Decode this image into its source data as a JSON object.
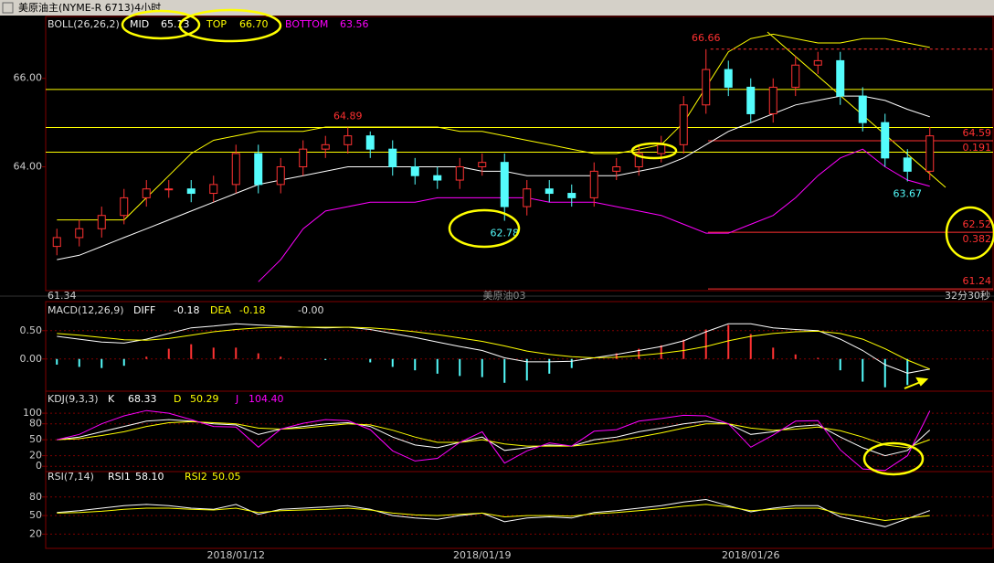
{
  "title": "美原油主(NYME-R 6713)4小时",
  "footer": {
    "left": "61.34",
    "center": "美原油03",
    "right": "32分30秒"
  },
  "chart_data": [
    {
      "type": "candlestick",
      "header": "BOLL(26,26,2)",
      "open": [
        62.2,
        62.4,
        62.6,
        62.9,
        63.3,
        63.5,
        63.5,
        63.4,
        63.6,
        64.3,
        63.6,
        64.0,
        64.4,
        64.5,
        64.7,
        64.4,
        64.0,
        63.8,
        63.7,
        64.0,
        64.1,
        63.1,
        63.5,
        63.4,
        63.3,
        63.9,
        64.0,
        64.3,
        64.5,
        65.4,
        66.2,
        65.8,
        65.2,
        65.8,
        66.3,
        66.4,
        65.6,
        65.0,
        64.2,
        63.9
      ],
      "high": [
        62.6,
        62.8,
        63.1,
        63.5,
        63.7,
        63.7,
        63.7,
        63.8,
        64.5,
        64.5,
        64.2,
        64.6,
        64.7,
        64.89,
        64.8,
        64.6,
        64.2,
        64.0,
        64.2,
        64.3,
        64.3,
        63.7,
        63.7,
        63.6,
        64.1,
        64.2,
        64.5,
        64.7,
        65.6,
        66.66,
        66.4,
        66.0,
        66.0,
        66.5,
        66.6,
        66.6,
        65.8,
        65.2,
        64.4,
        64.9
      ],
      "low": [
        62.0,
        62.2,
        62.4,
        62.7,
        63.1,
        63.3,
        63.2,
        63.2,
        63.4,
        63.4,
        63.4,
        63.8,
        64.2,
        64.3,
        64.2,
        63.8,
        63.6,
        63.5,
        63.5,
        63.8,
        62.78,
        62.9,
        63.2,
        63.1,
        63.1,
        63.7,
        63.8,
        64.1,
        64.3,
        65.2,
        65.6,
        65.0,
        65.0,
        65.6,
        66.1,
        65.4,
        64.8,
        64.0,
        63.67,
        63.7
      ],
      "close": [
        62.4,
        62.6,
        62.9,
        63.3,
        63.5,
        63.5,
        63.4,
        63.6,
        64.3,
        63.6,
        64.0,
        64.4,
        64.5,
        64.7,
        64.4,
        64.0,
        63.8,
        63.7,
        64.0,
        64.1,
        63.1,
        63.5,
        63.4,
        63.3,
        63.9,
        64.0,
        64.3,
        64.5,
        65.4,
        66.2,
        65.8,
        65.2,
        65.8,
        66.3,
        66.4,
        65.6,
        65.0,
        64.2,
        63.9,
        64.7
      ],
      "up_color": "#ff3232",
      "down_color": "#54fcfc",
      "series": [
        {
          "name": "MID",
          "color": "#ffffff",
          "last": 65.13,
          "values": [
            61.9,
            62.0,
            62.2,
            62.4,
            62.6,
            62.8,
            63.0,
            63.2,
            63.4,
            63.6,
            63.7,
            63.8,
            63.9,
            64.0,
            64.0,
            64.0,
            64.0,
            64.0,
            64.0,
            63.9,
            63.9,
            63.8,
            63.8,
            63.8,
            63.8,
            63.8,
            63.9,
            64.0,
            64.2,
            64.5,
            64.8,
            65.0,
            65.2,
            65.4,
            65.5,
            65.6,
            65.6,
            65.5,
            65.3,
            65.13
          ]
        },
        {
          "name": "TOP",
          "color": "#ffff00",
          "last": 66.7,
          "last_label": "66.70",
          "values": [
            62.8,
            62.8,
            62.8,
            62.8,
            63.3,
            63.8,
            64.3,
            64.6,
            64.7,
            64.8,
            64.8,
            64.8,
            64.9,
            64.9,
            64.9,
            64.9,
            64.9,
            64.9,
            64.8,
            64.8,
            64.7,
            64.6,
            64.5,
            64.4,
            64.3,
            64.3,
            64.4,
            64.5,
            65.0,
            65.8,
            66.6,
            66.9,
            67.0,
            66.9,
            66.8,
            66.8,
            66.9,
            66.9,
            66.8,
            66.7
          ]
        },
        {
          "name": "BOTTOM",
          "color": "#ff00ff",
          "last": 63.56,
          "values": [
            null,
            null,
            null,
            null,
            null,
            null,
            null,
            null,
            null,
            61.4,
            61.9,
            62.6,
            63.0,
            63.1,
            63.2,
            63.2,
            63.2,
            63.3,
            63.3,
            63.3,
            63.3,
            63.3,
            63.2,
            63.2,
            63.2,
            63.1,
            63.0,
            62.9,
            62.7,
            62.5,
            62.5,
            62.7,
            62.9,
            63.3,
            63.8,
            64.2,
            64.4,
            64.0,
            63.7,
            63.56
          ]
        }
      ],
      "hlines": {
        "color": "#ffff00",
        "values": [
          65.75,
          64.89,
          64.33
        ]
      },
      "fib_levels": {
        "color": "#ff3030",
        "levels": [
          {
            "value": 64.59,
            "label": "64.59",
            "ratio": "0.191"
          },
          {
            "value": 62.52,
            "label": "62.52",
            "ratio": "0.382"
          },
          {
            "value": 61.24,
            "label": "61.24"
          }
        ]
      },
      "annotations": [
        {
          "x": 13,
          "value": 64.89,
          "color": "#ff3030",
          "side": "above"
        },
        {
          "x": 29,
          "value": 66.66,
          "color": "#ff3030",
          "side": "above"
        },
        {
          "x": 20,
          "value": 62.78,
          "color": "#54fcfc",
          "side": "below"
        },
        {
          "x": 38,
          "value": 63.67,
          "color": "#54fcfc",
          "side": "below"
        }
      ],
      "ylim": [
        61.2,
        67.4
      ],
      "yticks": [
        {
          "value": 64,
          "label": "64.00"
        },
        {
          "value": 66,
          "label": "66.00"
        }
      ]
    },
    {
      "type": "macd",
      "header": "MACD(12,26,9)",
      "series": [
        {
          "name": "DIFF",
          "color": "#ffffff",
          "last": -0.18,
          "values": [
            0.4,
            0.35,
            0.3,
            0.28,
            0.35,
            0.45,
            0.55,
            0.58,
            0.62,
            0.6,
            0.58,
            0.56,
            0.55,
            0.56,
            0.52,
            0.45,
            0.38,
            0.3,
            0.22,
            0.15,
            0.02,
            -0.05,
            -0.05,
            -0.04,
            0.02,
            0.08,
            0.15,
            0.22,
            0.32,
            0.48,
            0.62,
            0.62,
            0.55,
            0.52,
            0.5,
            0.35,
            0.15,
            -0.1,
            -0.25,
            -0.18
          ]
        },
        {
          "name": "DEA",
          "color": "#ffff00",
          "last": -0.18,
          "values": [
            0.45,
            0.42,
            0.38,
            0.34,
            0.33,
            0.36,
            0.42,
            0.48,
            0.52,
            0.55,
            0.56,
            0.56,
            0.56,
            0.56,
            0.55,
            0.52,
            0.48,
            0.43,
            0.37,
            0.31,
            0.23,
            0.14,
            0.08,
            0.04,
            0.02,
            0.03,
            0.06,
            0.1,
            0.15,
            0.22,
            0.32,
            0.4,
            0.45,
            0.48,
            0.49,
            0.45,
            0.35,
            0.18,
            -0.02,
            -0.18
          ]
        }
      ],
      "histogram": {
        "up_color": "#ff3232",
        "down_color": "#54fcfc",
        "last": {
          "value": 0,
          "label": "-0.00"
        },
        "values": [
          -0.1,
          -0.14,
          -0.16,
          -0.12,
          0.04,
          0.18,
          0.26,
          0.2,
          0.2,
          0.1,
          0.04,
          0,
          -0.02,
          0,
          -0.06,
          -0.14,
          -0.2,
          -0.26,
          -0.3,
          -0.32,
          -0.42,
          -0.38,
          -0.26,
          -0.16,
          0,
          0.1,
          0.18,
          0.24,
          0.34,
          0.52,
          0.6,
          0.44,
          0.2,
          0.08,
          0.02,
          -0.2,
          -0.4,
          -0.5,
          -0.46,
          0
        ]
      },
      "ylim": [
        -0.52,
        0.98
      ],
      "yticks": [
        {
          "value": 0,
          "label": "0.00"
        },
        {
          "value": 0.5,
          "label": "0.50"
        }
      ],
      "grid": true
    },
    {
      "type": "line",
      "header": "KDJ(9,3,3)",
      "series": [
        {
          "name": "K",
          "color": "#ffffff",
          "last": 68.33,
          "values": [
            50,
            55,
            65,
            75,
            85,
            88,
            85,
            80,
            78,
            60,
            70,
            75,
            80,
            82,
            75,
            55,
            40,
            35,
            45,
            55,
            30,
            35,
            40,
            38,
            50,
            55,
            65,
            72,
            80,
            85,
            80,
            60,
            65,
            75,
            78,
            55,
            35,
            20,
            30,
            68.33
          ]
        },
        {
          "name": "D",
          "color": "#ffff00",
          "last": 50.29,
          "values": [
            50,
            52,
            58,
            65,
            75,
            82,
            84,
            82,
            80,
            72,
            70,
            72,
            76,
            80,
            78,
            68,
            55,
            45,
            45,
            50,
            42,
            38,
            38,
            38,
            42,
            48,
            55,
            63,
            72,
            80,
            80,
            72,
            68,
            70,
            74,
            67,
            55,
            40,
            35,
            50.29
          ]
        },
        {
          "name": "J",
          "color": "#ff00ff",
          "last": 104.4,
          "last_label": "104.40",
          "values": [
            50,
            60,
            80,
            95,
            105,
            100,
            88,
            75,
            74,
            36,
            70,
            81,
            88,
            86,
            69,
            29,
            10,
            15,
            45,
            65,
            6,
            29,
            44,
            38,
            66,
            69,
            85,
            90,
            96,
            95,
            80,
            36,
            59,
            85,
            86,
            31,
            -5,
            -8,
            20,
            104.4
          ]
        }
      ],
      "ylim": [
        -10,
        138
      ],
      "yticks": [
        0,
        20,
        50,
        80,
        100
      ],
      "grid": true
    },
    {
      "type": "line",
      "header": "RSI(7,14)",
      "series": [
        {
          "name": "RSI1",
          "color": "#ffffff",
          "last": 58.1,
          "last_label": "58.10",
          "values": [
            55,
            58,
            62,
            66,
            68,
            66,
            62,
            60,
            68,
            52,
            60,
            62,
            64,
            66,
            60,
            50,
            46,
            44,
            50,
            54,
            40,
            46,
            48,
            46,
            55,
            58,
            62,
            66,
            72,
            76,
            66,
            56,
            62,
            66,
            66,
            48,
            40,
            32,
            45,
            58.1
          ]
        },
        {
          "name": "RSI2",
          "color": "#ffff00",
          "last": 50.05,
          "values": [
            54,
            55,
            57,
            60,
            62,
            62,
            60,
            59,
            62,
            55,
            58,
            59,
            60,
            62,
            59,
            54,
            51,
            50,
            52,
            54,
            48,
            50,
            50,
            49,
            53,
            55,
            58,
            61,
            65,
            68,
            64,
            58,
            60,
            62,
            62,
            53,
            48,
            42,
            46,
            50.05
          ]
        }
      ],
      "categories": [
        null,
        null,
        null,
        null,
        null,
        null,
        null,
        null,
        "2018/01/12",
        null,
        null,
        null,
        null,
        null,
        null,
        null,
        null,
        null,
        null,
        "2018/01/19",
        null,
        null,
        null,
        null,
        null,
        null,
        null,
        null,
        null,
        null,
        null,
        "2018/01/26",
        null,
        null,
        null,
        null,
        null,
        null,
        null,
        null
      ],
      "ylim": [
        -3,
        121
      ],
      "yticks": [
        20,
        50,
        80
      ],
      "grid": true
    }
  ]
}
